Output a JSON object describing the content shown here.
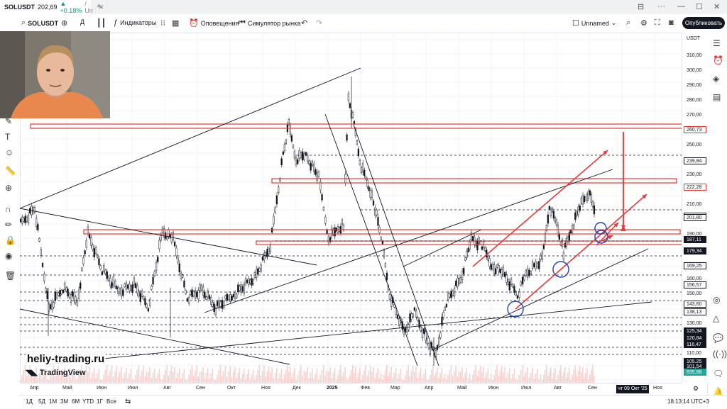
{
  "tab": {
    "symbol": "SOLUSDT",
    "price": "202,69",
    "change": "▲ +0.18%",
    "more": "/ Un"
  },
  "toolbar": {
    "symbol": "SOLUSDT",
    "interval": "Д",
    "indicators": "Индикаторы",
    "alerts": "Оповещения",
    "replay": "Симулятор рынка",
    "layout_name": "Unnamed",
    "publish": "Опубликовать"
  },
  "price_scale": {
    "currency": "USDT",
    "ticks": [
      "310,00",
      "300,00",
      "290,00",
      "280,00",
      "270,00",
      "250,00",
      "230,00",
      "220,00",
      "210,00",
      "190,00",
      "160,00",
      "150,00",
      "130,00",
      "110,00"
    ],
    "labels": [
      {
        "text": "260,73",
        "bg": "#ffffff",
        "fg": "#131722",
        "border": "#e53935"
      },
      {
        "text": "239,84",
        "bg": "#ffffff",
        "fg": "#131722",
        "border": "#131722"
      },
      {
        "text": "222,28",
        "bg": "#ffffff",
        "fg": "#131722",
        "border": "#e53935"
      },
      {
        "text": "202,70",
        "bg": "#ffffff",
        "fg": "#131722",
        "border": "#131722"
      },
      {
        "text": "201,80",
        "bg": "#ffffff",
        "fg": "#131722",
        "border": "#131722"
      },
      {
        "text": "187,11",
        "bg": "#131722",
        "fg": "#ffffff",
        "border": "#131722"
      },
      {
        "text": "179,34",
        "bg": "#131722",
        "fg": "#ffffff",
        "border": "#131722"
      },
      {
        "text": "169,25",
        "bg": "#ffffff",
        "fg": "#131722",
        "border": "#131722"
      },
      {
        "text": "156,57",
        "bg": "#ffffff",
        "fg": "#131722",
        "border": "#131722"
      },
      {
        "text": "143,60",
        "bg": "#ffffff",
        "fg": "#131722",
        "border": "#131722"
      },
      {
        "text": "138,13",
        "bg": "#ffffff",
        "fg": "#131722",
        "border": "#131722"
      },
      {
        "text": "125,34",
        "bg": "#131722",
        "fg": "#ffffff",
        "border": "#131722"
      },
      {
        "text": "120,84",
        "bg": "#131722",
        "fg": "#ffffff",
        "border": "#131722"
      },
      {
        "text": "116,47",
        "bg": "#131722",
        "fg": "#ffffff",
        "border": "#131722"
      },
      {
        "text": "105,25",
        "bg": "#131722",
        "fg": "#ffffff",
        "border": "#131722"
      },
      {
        "text": "101,54",
        "bg": "#131722",
        "fg": "#ffffff",
        "border": "#131722"
      },
      {
        "text": "835,88 K",
        "bg": "#26a69a",
        "fg": "#ffffff",
        "border": "#26a69a"
      }
    ]
  },
  "time_axis": {
    "ticks": [
      "Апр",
      "Май",
      "Июн",
      "Июл",
      "Авг",
      "Сен",
      "Окт",
      "Ноя",
      "Дек",
      "2025",
      "Фев",
      "Мар",
      "Апр",
      "Май",
      "Июн",
      "Июл",
      "Авг",
      "Сен",
      "Ноя"
    ],
    "current_date": "чт 09 Окт '25"
  },
  "bottom": {
    "ranges": [
      "1Д",
      "5Д",
      "1М",
      "3М",
      "6М",
      "YTD",
      "1Г",
      "Все"
    ],
    "clock": "18:13:14 UTC+3"
  },
  "watermark": {
    "site": "heliy-trading.ru",
    "logo": "TradingView"
  },
  "colors": {
    "up": "#131722",
    "down": "#131722",
    "levels": "#e53935",
    "circles": "#1e40af",
    "volume": "#ef9a9a"
  }
}
